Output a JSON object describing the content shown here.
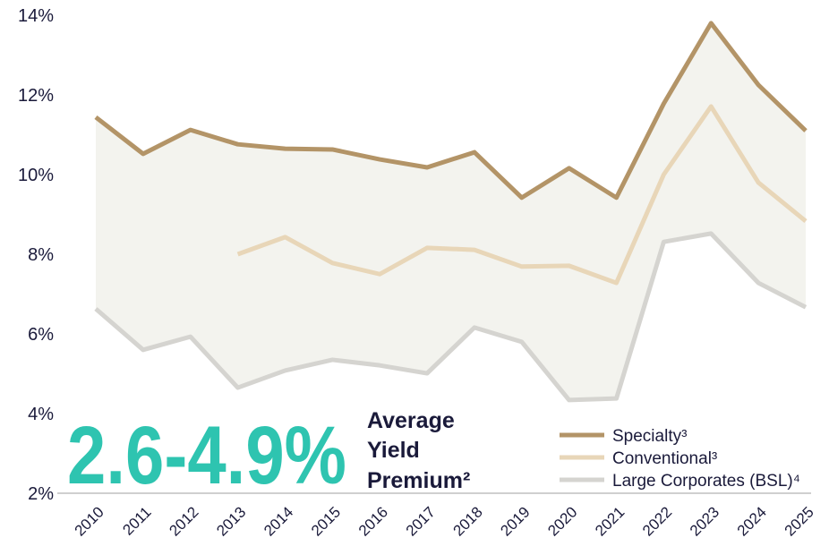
{
  "chart_data": {
    "type": "line",
    "categories": [
      "2010",
      "2011",
      "2012",
      "2013",
      "2014",
      "2015",
      "2016",
      "2017",
      "2018",
      "2019",
      "2020",
      "2021",
      "2022",
      "2023",
      "2024",
      "2025"
    ],
    "series": [
      {
        "name": "Specialty³",
        "color": "#b39467",
        "values": [
          11.44,
          10.52,
          11.12,
          10.76,
          10.65,
          10.63,
          10.38,
          10.18,
          10.56,
          9.42,
          10.16,
          9.42,
          11.78,
          13.8,
          12.25,
          11.1
        ]
      },
      {
        "name": "Conventional³",
        "color": "#e8d6b8",
        "values": [
          null,
          null,
          null,
          8.0,
          8.43,
          7.78,
          7.5,
          8.16,
          8.11,
          7.69,
          7.71,
          7.28,
          10.0,
          11.71,
          9.8,
          8.83
        ]
      },
      {
        "name": "Large Corporates (BSL)⁴",
        "color": "#d5d4d0",
        "values": [
          6.63,
          5.6,
          5.93,
          4.65,
          5.08,
          5.35,
          5.21,
          5.01,
          6.16,
          5.8,
          4.34,
          4.38,
          8.31,
          8.52,
          7.28,
          6.67
        ]
      }
    ],
    "area_color": "#f3f3ee",
    "ylim": [
      2,
      14
    ],
    "yticks": [
      {
        "value": 2,
        "label": "2%"
      },
      {
        "value": 4,
        "label": "4%"
      },
      {
        "value": 6,
        "label": "6%"
      },
      {
        "value": 8,
        "label": "8%"
      },
      {
        "value": 10,
        "label": "10%"
      },
      {
        "value": 12,
        "label": "12%"
      },
      {
        "value": 14,
        "label": "14%"
      }
    ],
    "annotation": {
      "value": "2.6-4.9%",
      "color": "#2ec4b0",
      "text": [
        "Average",
        "Yield",
        "Premium²"
      ]
    },
    "legend": "lower right"
  }
}
